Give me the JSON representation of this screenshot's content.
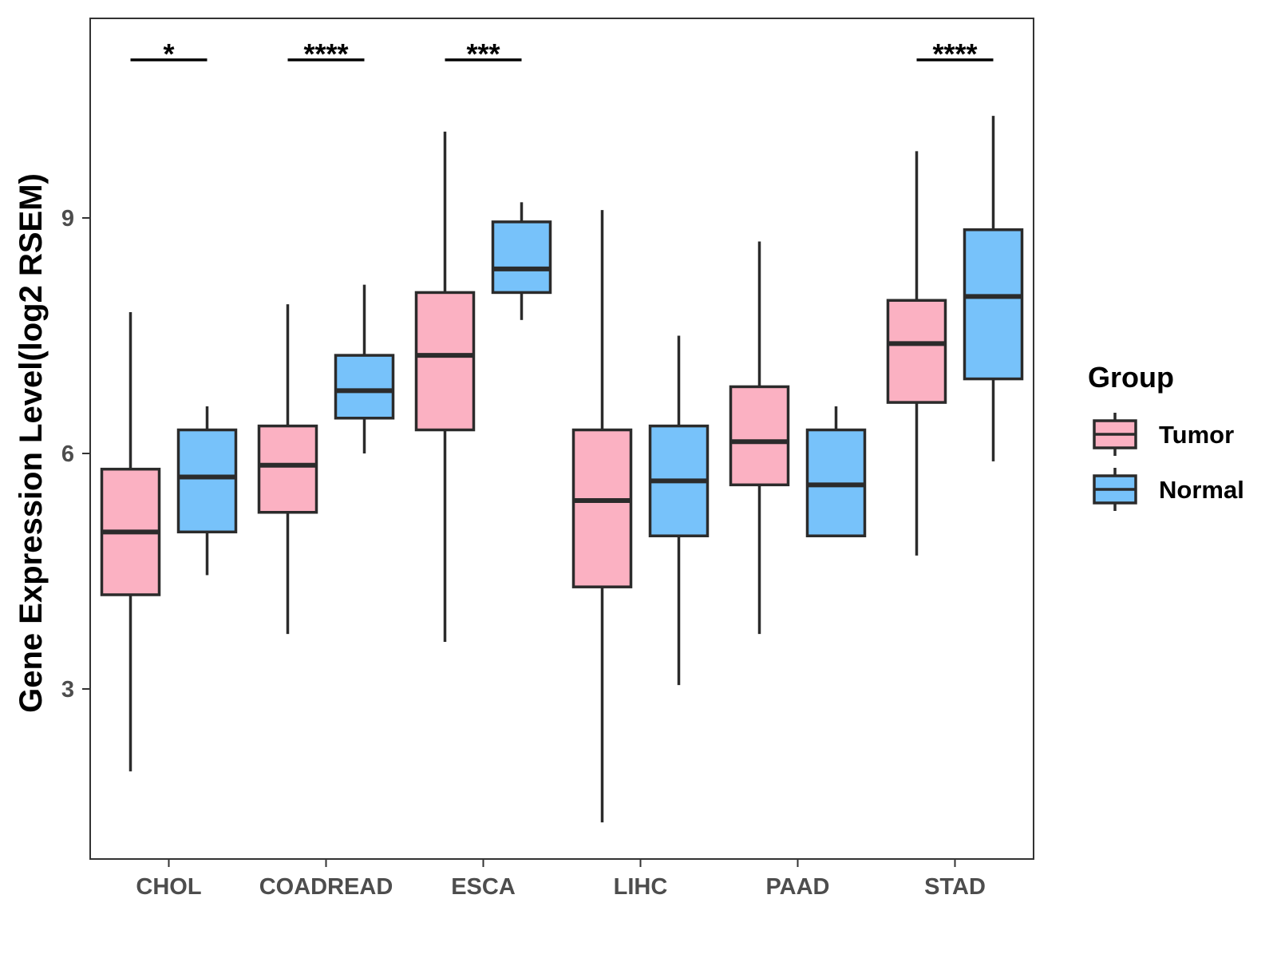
{
  "chart_data": {
    "type": "boxplot",
    "title": "",
    "xlabel": "",
    "ylabel": "Gene Expression Level(log2 RSEM)",
    "ylim": [
      0.8,
      11.5
    ],
    "yticks": [
      3,
      6,
      9
    ],
    "grid": false,
    "legend": {
      "title": "Group",
      "position": "right",
      "entries": [
        {
          "name": "Tumor",
          "color": "#FBB1C2"
        },
        {
          "name": "Normal",
          "color": "#77C2FA"
        }
      ]
    },
    "categories": [
      "CHOL",
      "COADREAD",
      "ESCA",
      "LIHC",
      "PAAD",
      "STAD"
    ],
    "series": [
      {
        "name": "Tumor",
        "color": "#FBB1C2",
        "boxes": [
          {
            "whisker_low": 1.95,
            "q1": 4.2,
            "median": 5.0,
            "q3": 5.8,
            "whisker_high": 7.8
          },
          {
            "whisker_low": 3.7,
            "q1": 5.25,
            "median": 5.85,
            "q3": 6.35,
            "whisker_high": 7.9
          },
          {
            "whisker_low": 3.6,
            "q1": 6.3,
            "median": 7.25,
            "q3": 8.05,
            "whisker_high": 10.1
          },
          {
            "whisker_low": 1.3,
            "q1": 4.3,
            "median": 5.4,
            "q3": 6.3,
            "whisker_high": 9.1
          },
          {
            "whisker_low": 3.7,
            "q1": 5.6,
            "median": 6.15,
            "q3": 6.85,
            "whisker_high": 8.7
          },
          {
            "whisker_low": 4.7,
            "q1": 6.65,
            "median": 7.4,
            "q3": 7.95,
            "whisker_high": 9.85
          }
        ]
      },
      {
        "name": "Normal",
        "color": "#77C2FA",
        "boxes": [
          {
            "whisker_low": 4.45,
            "q1": 5.0,
            "median": 5.7,
            "q3": 6.3,
            "whisker_high": 6.6
          },
          {
            "whisker_low": 6.0,
            "q1": 6.45,
            "median": 6.8,
            "q3": 7.25,
            "whisker_high": 8.15
          },
          {
            "whisker_low": 7.7,
            "q1": 8.05,
            "median": 8.35,
            "q3": 8.95,
            "whisker_high": 9.2
          },
          {
            "whisker_low": 3.05,
            "q1": 4.95,
            "median": 5.65,
            "q3": 6.35,
            "whisker_high": 7.5
          },
          {
            "whisker_low": 4.95,
            "q1": 4.95,
            "median": 5.6,
            "q3": 6.3,
            "whisker_high": 6.6
          },
          {
            "whisker_low": 5.9,
            "q1": 6.95,
            "median": 8.0,
            "q3": 8.85,
            "whisker_high": 10.3
          }
        ]
      }
    ],
    "annotations": [
      {
        "category": "CHOL",
        "label": "*"
      },
      {
        "category": "COADREAD",
        "label": "****"
      },
      {
        "category": "ESCA",
        "label": "***"
      },
      {
        "category": "STAD",
        "label": "****"
      }
    ]
  }
}
